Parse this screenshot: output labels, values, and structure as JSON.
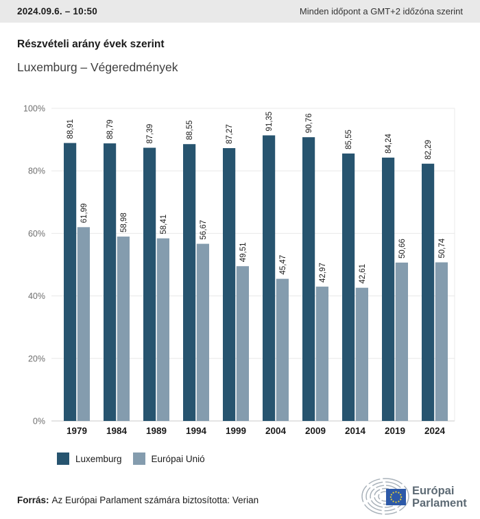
{
  "header": {
    "datetime": "2024.09.6. – 10:50",
    "timezone_note": "Minden időpont a GMT+2 időzóna szerint"
  },
  "title": "Részvételi arány évek szerint",
  "subtitle": "Luxemburg – Végeredmények",
  "chart_data": {
    "type": "bar",
    "title": "Részvételi arány évek szerint",
    "subtitle": "Luxemburg – Végeredmények",
    "categories": [
      "1979",
      "1984",
      "1989",
      "1994",
      "1999",
      "2004",
      "2009",
      "2014",
      "2019",
      "2024"
    ],
    "series": [
      {
        "name": "Luxemburg",
        "color": "#27546F",
        "values": [
          88.91,
          88.79,
          87.39,
          88.55,
          87.27,
          91.35,
          90.76,
          85.55,
          84.24,
          82.29
        ]
      },
      {
        "name": "Európai Unió",
        "color": "#849CAE",
        "values": [
          61.99,
          58.98,
          58.41,
          56.67,
          49.51,
          45.47,
          42.97,
          42.61,
          50.66,
          50.74
        ]
      }
    ],
    "value_labels": [
      [
        "88,91",
        "88,79",
        "87,39",
        "88,55",
        "87,27",
        "91,35",
        "90,76",
        "85,55",
        "84,24",
        "82,29"
      ],
      [
        "61,99",
        "58,98",
        "58,41",
        "56,67",
        "49,51",
        "45,47",
        "42,97",
        "42,61",
        "50,66",
        "50,74"
      ]
    ],
    "xlabel": "",
    "ylabel": "",
    "ylim": [
      0,
      100
    ],
    "yticks": [
      0,
      20,
      40,
      60,
      80,
      100
    ],
    "ytick_suffix": "%",
    "grid": true,
    "legend_position": "bottom",
    "colors": {
      "gridline": "#e8e8e8",
      "baseline": "#c9c9c9",
      "ytick_text": "#6f6f6f",
      "xtick_text": "#1a1a1a",
      "value_label_text": "#1a1a1a"
    }
  },
  "footer": {
    "source_label": "Forrás:",
    "source_text": "Az Európai Parlament számára biztosította: Verian",
    "logo_line1": "Európai",
    "logo_line2": "Parlament"
  }
}
